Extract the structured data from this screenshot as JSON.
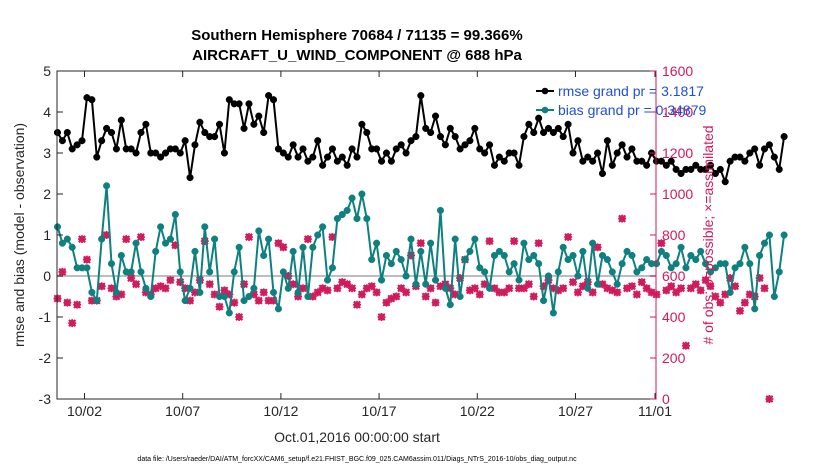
{
  "chart_data": {
    "type": "line",
    "title_line1": "Southern Hemisphere 70684 / 71135 = 99.366%",
    "title_line2": "AIRCRAFT_U_WIND_COMPONENT @ 688 hPa",
    "xlabel": "Oct.01,2016 00:00:00 start",
    "ylabel": "rmse and bias (model - observation)",
    "ylabel_right": "# of obs: o=possible; ×=assimilated",
    "footnote": "data file: /Users/raeder/DAI/ATM_forcXX/CAM6_setup/f.e21.FHIST_BGC.f09_025.CAM6assim.011/Diags_NTrS_2016-10/obs_diag_output.nc",
    "xlim": [
      0.6,
      31.1
    ],
    "ylim": [
      -3,
      5
    ],
    "ylim_right": [
      0,
      1600
    ],
    "x_ticks": [
      {
        "x": 2,
        "label": "10/02"
      },
      {
        "x": 7,
        "label": "10/07"
      },
      {
        "x": 12,
        "label": "10/12"
      },
      {
        "x": 17,
        "label": "10/17"
      },
      {
        "x": 22,
        "label": "10/22"
      },
      {
        "x": 27,
        "label": "10/27"
      },
      {
        "x": 32,
        "label": "11/01"
      }
    ],
    "y_ticks": [
      "-3",
      "-2",
      "-1",
      "0",
      "1",
      "2",
      "3",
      "4",
      "5"
    ],
    "y_ticks_right": [
      "0",
      "200",
      "400",
      "600",
      "800",
      "1000",
      "1200",
      "1400",
      "1600"
    ],
    "grid": false,
    "legend_placement": "top-right",
    "x_start": 0.625,
    "x_step": 0.25,
    "series": [
      {
        "name": "rmse grand pr = 3.1817",
        "color": "#000000",
        "axis": "left",
        "values": [
          3.5,
          3.3,
          3.5,
          3.1,
          3.2,
          3.3,
          4.35,
          4.3,
          2.9,
          3.3,
          3.6,
          3.5,
          3.1,
          3.8,
          3.1,
          3.1,
          3.0,
          3.5,
          3.7,
          3.0,
          3.0,
          2.9,
          3.0,
          3.1,
          3.1,
          3.0,
          3.3,
          2.4,
          3.2,
          3.75,
          3.5,
          3.4,
          3.4,
          3.7,
          3.0,
          4.3,
          4.2,
          4.2,
          3.6,
          4.2,
          3.7,
          3.9,
          3.5,
          4.4,
          4.3,
          3.1,
          3.0,
          2.9,
          3.2,
          2.9,
          3.1,
          2.8,
          2.9,
          3.3,
          2.7,
          2.9,
          3.1,
          2.8,
          2.9,
          2.7,
          3.1,
          2.9,
          3.7,
          3.5,
          3.1,
          3.1,
          2.8,
          3.0,
          2.8,
          3.1,
          3.2,
          3.0,
          3.3,
          3.4,
          4.4,
          3.6,
          3.5,
          3.9,
          3.4,
          3.2,
          3.6,
          3.4,
          3.1,
          3.2,
          3.3,
          3.6,
          3.1,
          3.0,
          3.2,
          2.7,
          2.9,
          2.8,
          3.0,
          3.0,
          2.7,
          3.4,
          3.7,
          3.5,
          3.85,
          3.5,
          3.6,
          3.5,
          3.6,
          3.4,
          3.7,
          3.0,
          3.3,
          2.8,
          2.9,
          2.8,
          3.0,
          2.5,
          3.3,
          2.7,
          3.0,
          3.2,
          2.9,
          3.1,
          2.8,
          2.8,
          2.7,
          3.0,
          2.8,
          2.8,
          2.7,
          2.8,
          2.6,
          2.5,
          2.6,
          2.6,
          2.7,
          2.6,
          2.6,
          2.7,
          2.5,
          2.6,
          2.3,
          2.8,
          2.9,
          2.9,
          2.8,
          3.0,
          3.1,
          2.7,
          3.1,
          3.2,
          2.9,
          2.6,
          3.4
        ]
      },
      {
        "name": "bias grand pr = 0.34879",
        "color": "#0f8080",
        "axis": "left",
        "values": [
          1.2,
          0.8,
          0.9,
          0.7,
          0.2,
          0.2,
          0.2,
          -0.4,
          -0.6,
          0.9,
          2.2,
          0.3,
          -0.4,
          0.5,
          0.1,
          0.1,
          0.8,
          0.1,
          -0.3,
          -0.5,
          0.6,
          1.2,
          0.8,
          0.9,
          1.5,
          0.1,
          -0.6,
          -0.3,
          0.6,
          -0.4,
          1.2,
          0.1,
          0.9,
          -0.5,
          -0.5,
          -0.9,
          0.1,
          0.7,
          -0.6,
          -0.5,
          -0.3,
          1.1,
          0.5,
          0.9,
          -0.4,
          -0.8,
          0.1,
          -0.3,
          0.6,
          -0.4,
          0.7,
          -0.5,
          0.7,
          1.0,
          1.2,
          -0.1,
          0.2,
          1.4,
          1.5,
          1.6,
          1.9,
          1.4,
          2.0,
          1.4,
          0.4,
          0.8,
          -0.1,
          0.5,
          0.3,
          0.6,
          0.4,
          0.0,
          0.9,
          -0.2,
          0.6,
          -0.2,
          0.8,
          -0.1,
          1.6,
          -0.3,
          -0.7,
          0.9,
          -0.5,
          0.4,
          0.6,
          0.9,
          0.2,
          0.1,
          -0.3,
          0.5,
          0.6,
          0.5,
          0.1,
          0.3,
          -0.1,
          0.8,
          0.4,
          0.5,
          0.3,
          -0.6,
          0.0,
          -0.9,
          0.1,
          0.7,
          0.4,
          0.5,
          0.0,
          0.6,
          -0.3,
          0.8,
          -0.2,
          0.5,
          0.4,
          0.1,
          -0.2,
          0.3,
          0.6,
          0.5,
          0.1,
          0.2,
          0.4,
          0.3,
          0.3,
          0.6,
          0.5,
          0.2,
          0.3,
          0.7,
          0.2,
          0.5,
          0.4,
          0.6,
          0.3,
          0.1,
          0.2,
          0.3,
          0.3,
          -0.4,
          0.2,
          0.3,
          0.7,
          0.3,
          -0.8,
          0.5,
          0.8,
          1.0,
          -0.5,
          0.1,
          1.0
        ]
      },
      {
        "name": "# of obs possible",
        "color": "#d11a5c",
        "axis": "right",
        "values": [
          490,
          620,
          470,
          370,
          460,
          780,
          680,
          480,
          480,
          550,
          800,
          540,
          500,
          510,
          780,
          590,
          560,
          790,
          520,
          510,
          540,
          550,
          540,
          580,
          750,
          570,
          540,
          480,
          520,
          580,
          770,
          560,
          510,
          450,
          530,
          510,
          470,
          400,
          560,
          790,
          510,
          480,
          520,
          480,
          480,
          760,
          740,
          600,
          560,
          500,
          540,
          780,
          500,
          520,
          540,
          530,
          790,
          540,
          570,
          560,
          540,
          460,
          510,
          540,
          550,
          520,
          400,
          470,
          490,
          500,
          540,
          520,
          700,
          550,
          760,
          500,
          540,
          470,
          550,
          560,
          540,
          510,
          590,
          680,
          530,
          540,
          510,
          560,
          770,
          540,
          520,
          520,
          540,
          770,
          540,
          540,
          560,
          500,
          760,
          550,
          580,
          540,
          530,
          540,
          790,
          570,
          520,
          550,
          570,
          520,
          740,
          560,
          540,
          530,
          520,
          880,
          540,
          550,
          510,
          570,
          540,
          520,
          510,
          760,
          530,
          550,
          520,
          540,
          260,
          540,
          560,
          530,
          580,
          550,
          500,
          470,
          510,
          590,
          550,
          430,
          470,
          510,
          500,
          590,
          540,
          0
        ]
      },
      {
        "name": "# of obs assimilated",
        "color": "#d11a5c",
        "axis": "right",
        "values": [
          490,
          620,
          470,
          370,
          460,
          780,
          680,
          480,
          480,
          550,
          800,
          540,
          500,
          510,
          780,
          590,
          560,
          790,
          520,
          510,
          540,
          550,
          540,
          580,
          750,
          570,
          540,
          480,
          520,
          580,
          770,
          560,
          510,
          450,
          530,
          510,
          470,
          400,
          560,
          790,
          510,
          480,
          520,
          480,
          480,
          760,
          740,
          600,
          560,
          500,
          540,
          780,
          500,
          520,
          540,
          530,
          790,
          540,
          570,
          560,
          540,
          460,
          510,
          540,
          550,
          520,
          400,
          470,
          490,
          500,
          540,
          520,
          700,
          550,
          760,
          500,
          540,
          470,
          550,
          560,
          540,
          510,
          590,
          680,
          530,
          540,
          510,
          560,
          770,
          540,
          520,
          520,
          540,
          770,
          540,
          540,
          560,
          500,
          760,
          550,
          580,
          540,
          530,
          540,
          790,
          570,
          520,
          550,
          570,
          520,
          740,
          560,
          540,
          530,
          520,
          880,
          540,
          550,
          510,
          570,
          540,
          520,
          510,
          760,
          530,
          550,
          520,
          540,
          260,
          540,
          560,
          530,
          580,
          550,
          500,
          470,
          510,
          590,
          550,
          430,
          470,
          510,
          500,
          590,
          540,
          0
        ]
      }
    ]
  }
}
